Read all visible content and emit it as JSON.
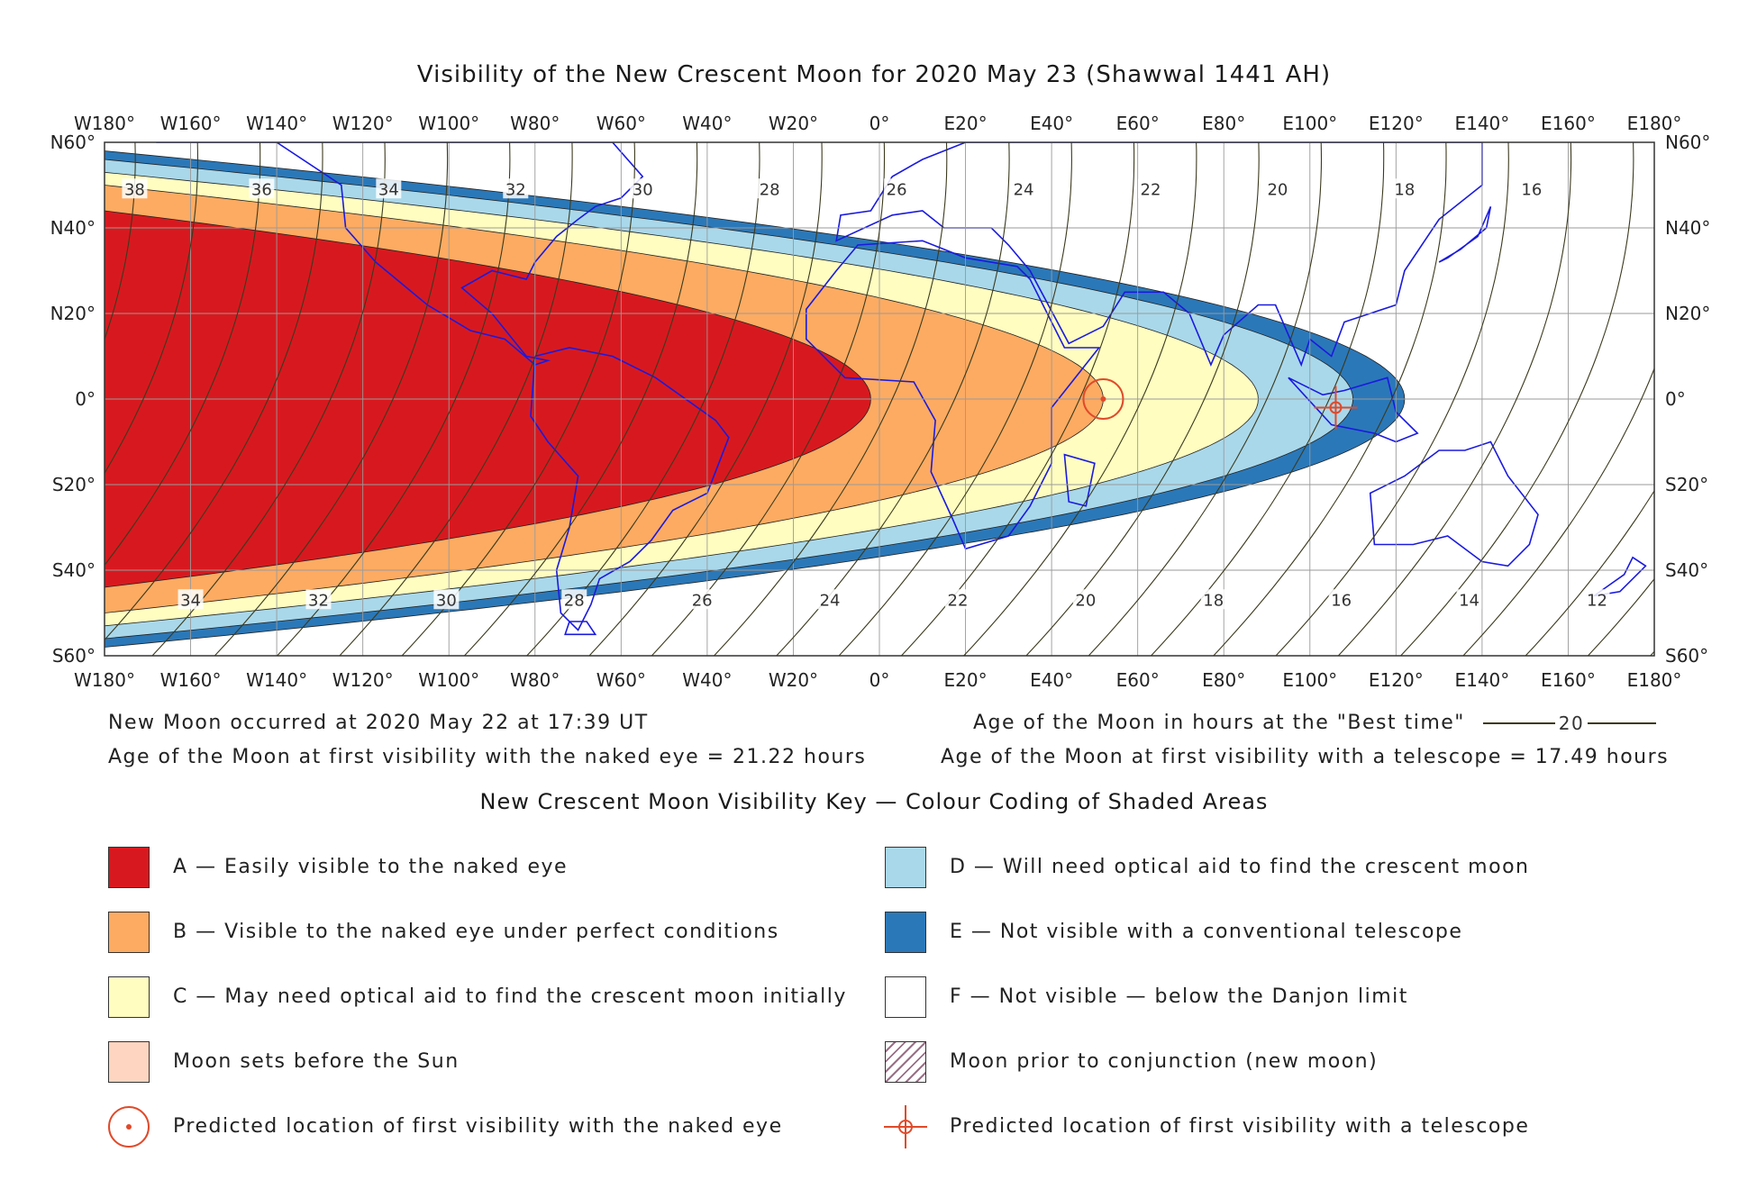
{
  "title": "Visibility of the New Crescent Moon for 2020 May 23 (Shawwal 1441 AH)",
  "axes": {
    "lon_labels": [
      "W180°",
      "W160°",
      "W140°",
      "W120°",
      "W100°",
      "W80°",
      "W60°",
      "W40°",
      "W20°",
      "0°",
      "E20°",
      "E40°",
      "E60°",
      "E80°",
      "E100°",
      "E120°",
      "E140°",
      "E160°",
      "E180°"
    ],
    "lat_labels": [
      "N60°",
      "N40°",
      "N20°",
      "0°",
      "S20°",
      "S40°",
      "S60°"
    ]
  },
  "map_data": {
    "lon_range": [
      -180,
      180
    ],
    "lat_range": [
      -60,
      60
    ],
    "grid": true,
    "zones": [
      {
        "code": "E",
        "color": "#2b78b8",
        "tip_lon": 122
      },
      {
        "code": "D",
        "color": "#a9d8ea",
        "tip_lon": 110
      },
      {
        "code": "C",
        "color": "#fffdc0",
        "tip_lon": 88
      },
      {
        "code": "B",
        "color": "#fdab62",
        "tip_lon": 52
      },
      {
        "code": "A",
        "color": "#d7191f",
        "tip_lon": -2
      }
    ],
    "hour_labels_north": [
      "38",
      "36",
      "34",
      "32",
      "30",
      "28",
      "26",
      "24",
      "22",
      "20",
      "18",
      "16"
    ],
    "hour_labels_south": [
      "34",
      "32",
      "30",
      "28",
      "26",
      "24",
      "22",
      "20",
      "18",
      "16",
      "14",
      "12"
    ],
    "naked_eye_marker": {
      "lon": 52,
      "lat": 0
    },
    "telescope_marker": {
      "lon": 106,
      "lat": -2
    }
  },
  "info": {
    "new_moon": "New Moon occurred at 2020 May 22 at 17:39 UT",
    "naked_eye_age": "Age of the Moon at first visibility with the naked eye = 21.22 hours",
    "best_time_legend": "Age of the Moon in hours at the \"Best time\"",
    "best_time_sample": "20",
    "telescope_age": "Age of the Moon at first visibility with a telescope = 17.49 hours"
  },
  "key": {
    "title": "New Crescent Moon Visibility Key — Colour Coding of Shaded Areas",
    "items": [
      {
        "label": "A — Easily visible to the naked eye",
        "color": "#d7191f",
        "kind": "fill"
      },
      {
        "label": "B — Visible to the naked eye under perfect conditions",
        "color": "#fdab62",
        "kind": "fill"
      },
      {
        "label": "C — May need optical aid to find the crescent moon initially",
        "color": "#fffdc0",
        "kind": "fill"
      },
      {
        "label": "Moon sets before the Sun",
        "color": "#fdd5c0",
        "kind": "fill"
      },
      {
        "label": "Predicted location of first visibility with the naked eye",
        "color": "#e04a2a",
        "kind": "circle-marker"
      },
      {
        "label": "D — Will need optical aid to find the crescent moon",
        "color": "#a9d8ea",
        "kind": "fill"
      },
      {
        "label": "E — Not visible with a conventional telescope",
        "color": "#2b78b8",
        "kind": "fill"
      },
      {
        "label": "F — Not visible — below the Danjon limit",
        "color": "#ffffff",
        "kind": "fill"
      },
      {
        "label": "Moon prior to conjunction (new moon)",
        "color": "#9a6f86",
        "kind": "hatch"
      },
      {
        "label": "Predicted location of first visibility with a telescope",
        "color": "#e04a2a",
        "kind": "cross-marker"
      }
    ]
  }
}
